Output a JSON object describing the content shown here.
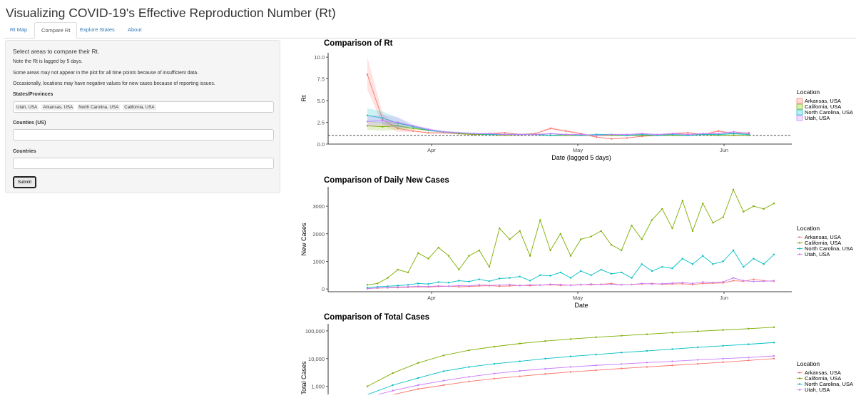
{
  "page": {
    "title": "Visualizing COVID-19's Effective Reproduction Number (Rt)"
  },
  "tabs": [
    {
      "label": "Rt Map",
      "active": false
    },
    {
      "label": "Compare Rt",
      "active": true
    },
    {
      "label": "Explore States",
      "active": false
    },
    {
      "label": "About",
      "active": false
    }
  ],
  "sidebar": {
    "lead": "Select areas to compare their Rt.",
    "note1": "Note the Rt is lagged by 5 days.",
    "note2": "Some areas may not appear in the plot for all time points because of insufficient data.",
    "note3": "Occasionally, locations may have negative values for new cases because of reporting issues.",
    "states_label": "States/Provinces",
    "states_selected": [
      "Utah, USA",
      "Arkansas, USA",
      "North Carolina, USA",
      "California, USA"
    ],
    "counties_label": "Counties (US)",
    "counties_value": "",
    "countries_label": "Countries",
    "countries_value": "",
    "submit_label": "Submit"
  },
  "chart_data": [
    {
      "type": "line",
      "title": "Comparison of Rt",
      "xlabel": "Date (lagged 5 days)",
      "ylabel": "Rt",
      "x_ticks": [
        "Apr",
        "May",
        "Jun"
      ],
      "y_ticks": [
        "0.0",
        "2.5",
        "5.0",
        "7.5",
        "10.0"
      ],
      "ylim": [
        0,
        10.5
      ],
      "legend_title": "Location",
      "legend_position": "right",
      "reference_line": 1,
      "x": [
        0,
        3,
        6,
        9,
        12,
        15,
        18,
        21,
        24,
        27,
        30,
        33,
        36,
        39,
        42,
        45,
        48,
        51,
        54,
        57,
        60,
        63,
        66,
        69,
        72,
        75
      ],
      "series": [
        {
          "name": "Arkansas, USA",
          "color": "#F8766D",
          "values": [
            8.0,
            2.8,
            1.8,
            1.5,
            1.3,
            1.3,
            1.2,
            1.1,
            1.2,
            1.3,
            1.1,
            1.2,
            1.8,
            1.5,
            1.2,
            0.8,
            0.6,
            0.7,
            0.9,
            1.0,
            1.2,
            1.3,
            1.1,
            1.5,
            1.2,
            1.3
          ]
        },
        {
          "name": "California, USA",
          "color": "#7CAE00",
          "values": [
            2.1,
            2.0,
            2.1,
            1.8,
            1.6,
            1.4,
            1.2,
            1.1,
            1.1,
            1.0,
            1.1,
            1.1,
            1.0,
            1.0,
            1.0,
            1.0,
            1.0,
            1.0,
            1.0,
            1.0,
            1.0,
            1.0,
            1.1,
            1.0,
            1.0,
            1.0
          ]
        },
        {
          "name": "North Carolina, USA",
          "color": "#00BFC4",
          "values": [
            3.3,
            3.0,
            2.4,
            2.0,
            1.6,
            1.4,
            1.3,
            1.2,
            1.1,
            1.1,
            1.1,
            1.1,
            1.0,
            1.1,
            1.0,
            1.1,
            1.1,
            1.0,
            1.1,
            1.0,
            1.1,
            1.0,
            1.1,
            1.1,
            1.2,
            1.1
          ]
        },
        {
          "name": "Utah, USA",
          "color": "#C77CFF",
          "values": [
            2.6,
            2.7,
            2.5,
            2.1,
            1.7,
            1.4,
            1.3,
            1.2,
            1.2,
            1.1,
            1.1,
            1.1,
            1.2,
            1.1,
            1.1,
            1.0,
            1.1,
            1.1,
            1.2,
            1.1,
            1.2,
            1.1,
            1.2,
            1.2,
            1.4,
            1.2
          ]
        }
      ]
    },
    {
      "type": "line",
      "title": "Comparison of Daily New Cases",
      "xlabel": "Date",
      "ylabel": "New Cases",
      "x_ticks": [
        "Apr",
        "May",
        "Jun"
      ],
      "y_ticks": [
        "0",
        "1000",
        "2000",
        "3000"
      ],
      "ylim": [
        -100,
        3700
      ],
      "legend_title": "Location",
      "legend_position": "right",
      "x": [
        0,
        4,
        8,
        12,
        16,
        20,
        24,
        28,
        32,
        36,
        40,
        44,
        48,
        52,
        56,
        60,
        64,
        68,
        72,
        76,
        80,
        84,
        88,
        92,
        96,
        100,
        104,
        108,
        112,
        116,
        120,
        124,
        128,
        132,
        136,
        140,
        144,
        148,
        152,
        156,
        160
      ],
      "series": [
        {
          "name": "Arkansas, USA",
          "color": "#F8766D",
          "values": [
            20,
            30,
            40,
            50,
            60,
            80,
            70,
            90,
            100,
            80,
            90,
            110,
            120,
            100,
            110,
            130,
            120,
            140,
            150,
            130,
            140,
            160,
            150,
            170,
            200,
            150,
            160,
            180,
            200,
            170,
            180,
            190,
            160,
            200,
            210,
            220,
            300,
            280,
            350,
            300,
            280
          ]
        },
        {
          "name": "California, USA",
          "color": "#7CAE00",
          "values": [
            150,
            200,
            400,
            700,
            600,
            1300,
            1100,
            1500,
            1200,
            700,
            1200,
            1400,
            800,
            2200,
            1800,
            2100,
            1200,
            2500,
            1400,
            2000,
            1200,
            1800,
            1900,
            2100,
            1600,
            1400,
            2300,
            1800,
            2500,
            2900,
            2200,
            3200,
            2100,
            3100,
            2400,
            2600,
            3600,
            2800,
            3000,
            2900,
            3100
          ]
        },
        {
          "name": "North Carolina, USA",
          "color": "#00BFC4",
          "values": [
            50,
            80,
            100,
            120,
            150,
            200,
            180,
            250,
            230,
            300,
            270,
            350,
            280,
            380,
            400,
            450,
            300,
            500,
            480,
            600,
            400,
            650,
            500,
            700,
            550,
            600,
            400,
            900,
            650,
            800,
            750,
            1100,
            900,
            1200,
            900,
            1000,
            1400,
            800,
            1100,
            900,
            1250
          ]
        },
        {
          "name": "Utah, USA",
          "color": "#C77CFF",
          "values": [
            10,
            40,
            50,
            70,
            80,
            100,
            90,
            110,
            100,
            120,
            110,
            150,
            130,
            140,
            160,
            120,
            150,
            140,
            170,
            160,
            130,
            150,
            180,
            160,
            170,
            150,
            160,
            200,
            180,
            190,
            210,
            230,
            200,
            250,
            230,
            260,
            400,
            300,
            270,
            280,
            300
          ]
        }
      ]
    },
    {
      "type": "line",
      "title": "Comparison of Total Cases",
      "ylabel": "Total Cases",
      "y_scale": "log",
      "y_ticks": [
        "1,000",
        "10,000",
        "100,000"
      ],
      "legend_title": "Location",
      "legend_position": "right",
      "x": [
        0,
        10,
        20,
        30,
        40,
        50,
        60,
        70,
        80,
        90,
        100,
        110,
        120,
        130,
        140,
        150,
        160
      ],
      "series": [
        {
          "name": "Arkansas, USA",
          "color": "#F8766D",
          "values": [
            300,
            500,
            800,
            1100,
            1500,
            1900,
            2300,
            2800,
            3300,
            3800,
            4400,
            5000,
            5700,
            6500,
            7400,
            8600,
            10000
          ]
        },
        {
          "name": "California, USA",
          "color": "#7CAE00",
          "values": [
            1000,
            3000,
            7000,
            13000,
            20000,
            27000,
            35000,
            43000,
            51000,
            59000,
            67000,
            76000,
            86000,
            97000,
            108000,
            120000,
            135000
          ]
        },
        {
          "name": "North Carolina, USA",
          "color": "#00BFC4",
          "values": [
            500,
            1100,
            2000,
            3500,
            5000,
            6500,
            8000,
            10000,
            12000,
            14000,
            16500,
            19000,
            22000,
            25500,
            29000,
            33000,
            38000
          ]
        },
        {
          "name": "Utah, USA",
          "color": "#C77CFF",
          "values": [
            400,
            700,
            1100,
            1600,
            2200,
            2900,
            3600,
            4300,
            5000,
            5700,
            6400,
            7200,
            8000,
            9000,
            10000,
            11000,
            12500
          ]
        }
      ]
    }
  ]
}
